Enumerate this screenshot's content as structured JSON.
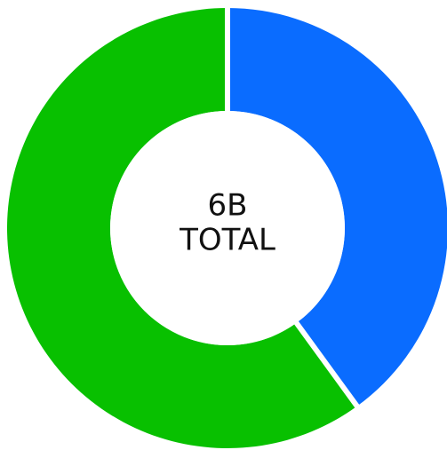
{
  "chart_data": {
    "type": "pie",
    "variant": "donut",
    "slices": [
      {
        "value": 2.4,
        "color": "#0a6cff"
      },
      {
        "value": 3.6,
        "color": "#08c000"
      }
    ],
    "center_label": {
      "value": "6B",
      "caption": "TOTAL"
    }
  }
}
